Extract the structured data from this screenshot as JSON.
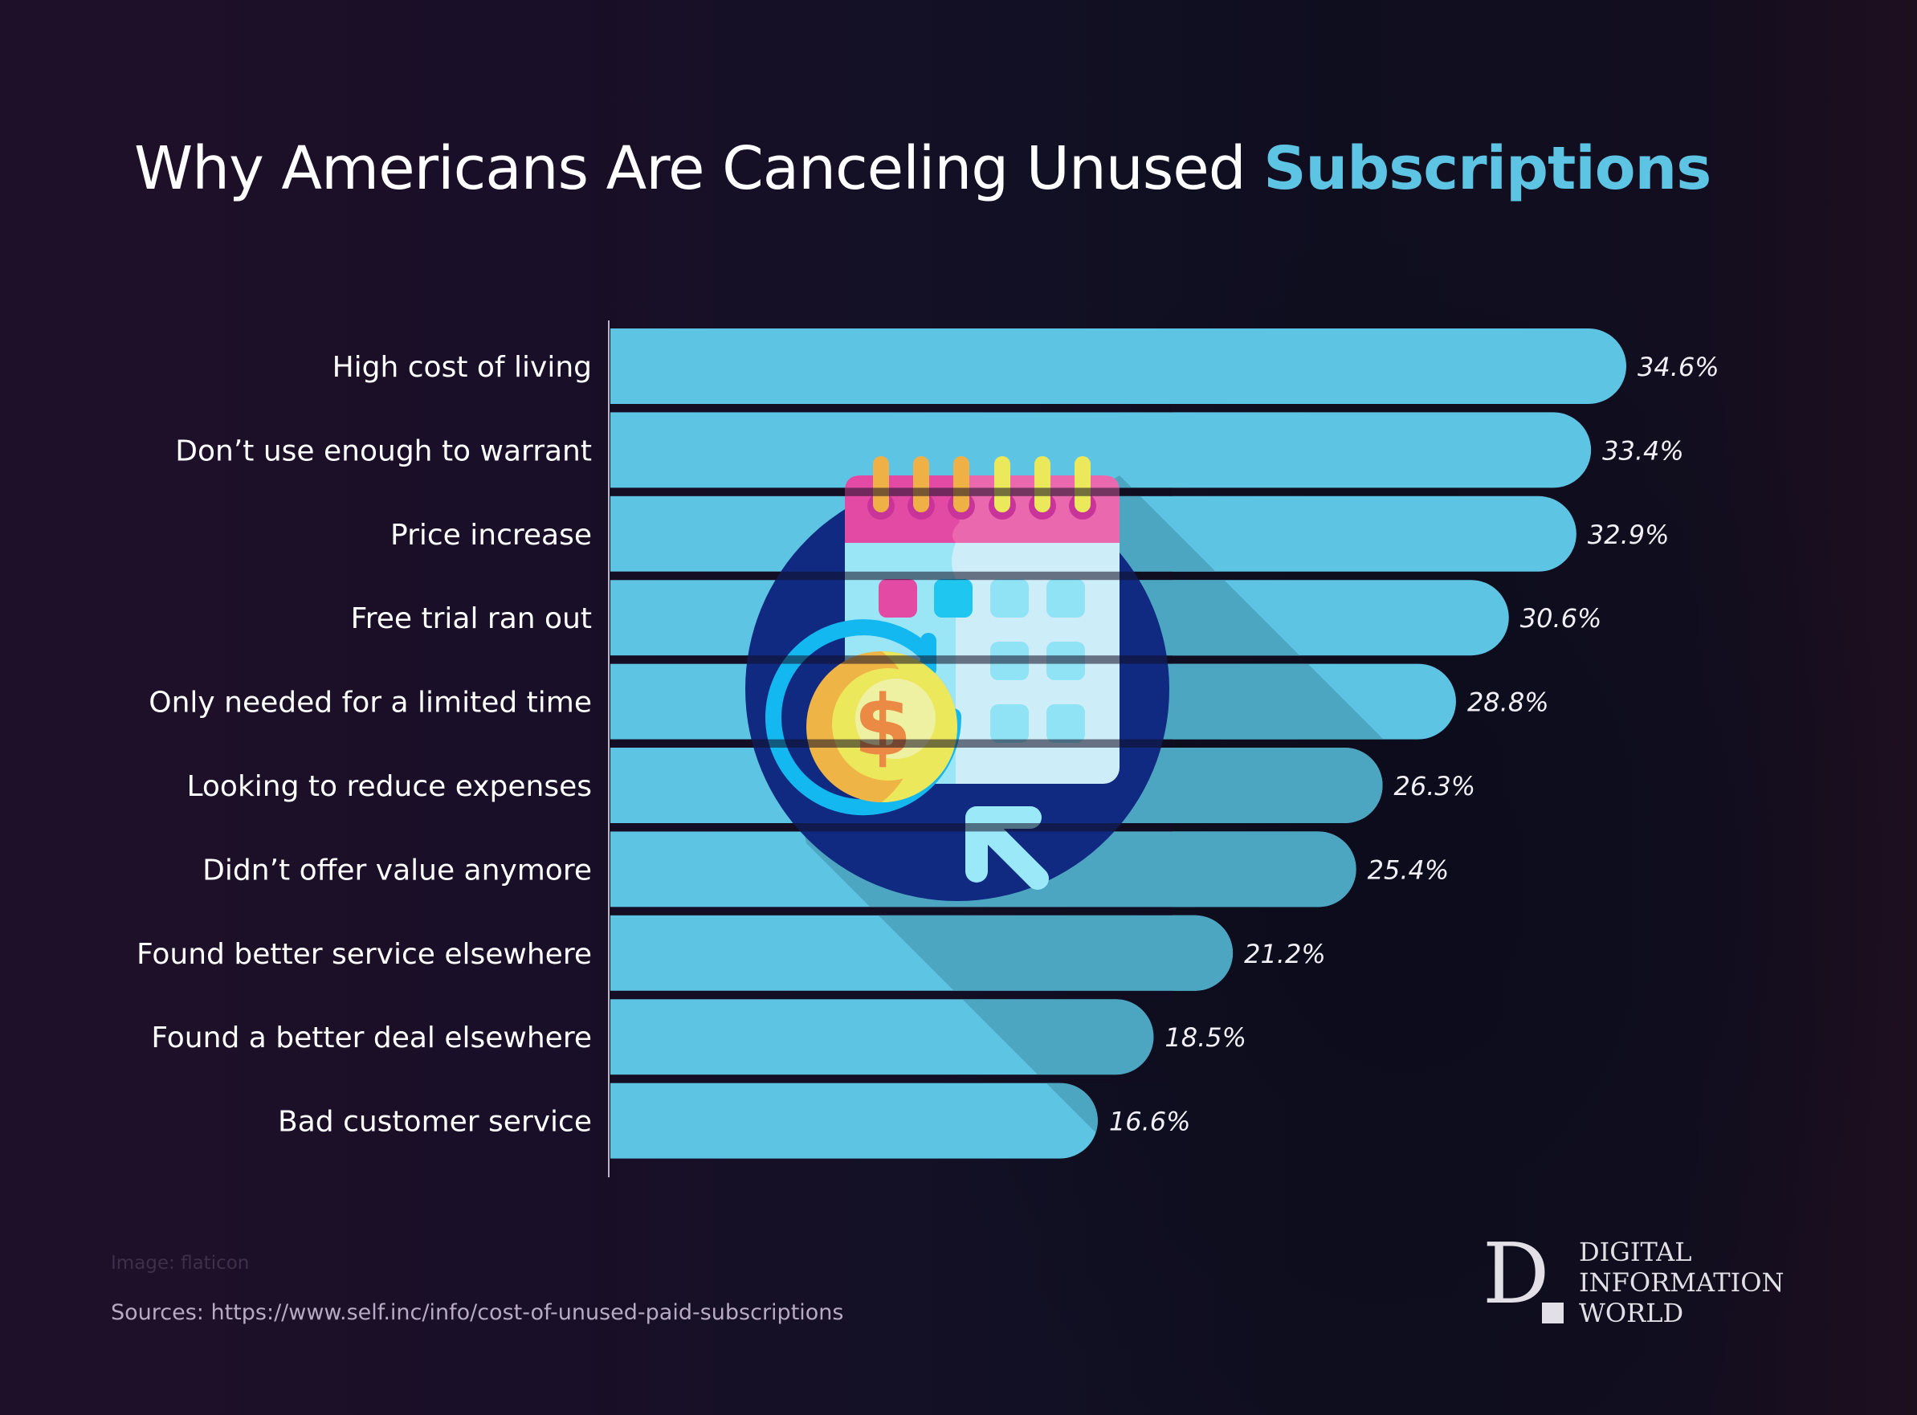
{
  "title": {
    "main": "Why Americans Are Canceling Unused ",
    "accent": "Subscriptions"
  },
  "chart_data": {
    "type": "bar",
    "orientation": "horizontal",
    "title": "Why Americans Are Canceling Unused Subscriptions",
    "xlabel": "",
    "ylabel": "",
    "unit": "%",
    "grid": false,
    "legend": "none",
    "xlim": [
      0,
      34.6
    ],
    "categories": [
      "High cost of living",
      "Don’t use enough to warrant",
      "Price increase",
      "Free trial ran out",
      "Only needed for a limited time",
      "Looking to reduce expenses",
      "Didn’t offer value anymore",
      "Found better service elsewhere",
      "Found a better deal elsewhere",
      "Bad customer service"
    ],
    "values": [
      34.6,
      33.4,
      32.9,
      30.6,
      28.8,
      26.3,
      25.4,
      21.2,
      18.5,
      16.6
    ],
    "value_labels": [
      "34.6%",
      "33.4%",
      "32.9%",
      "30.6%",
      "28.8%",
      "26.3%",
      "25.4%",
      "21.2%",
      "18.5%",
      "16.6%"
    ]
  },
  "colors": {
    "bar": "#5ec4e4",
    "bar_shadow": "#4ca6c2",
    "accent": "#5ec4e4",
    "axis": "#b8b4c4"
  },
  "illustration": {
    "icon": "calendar-coin-renewal-icon",
    "currency_symbol": "$"
  },
  "footer": {
    "image_credit": "Image: flaticon",
    "sources": "Sources: https://www.self.inc/info/cost-of-unused-paid-subscriptions"
  },
  "logo": {
    "letter": "D",
    "lines": [
      "DIGITAL",
      "INFORMATION",
      "WORLD"
    ]
  }
}
